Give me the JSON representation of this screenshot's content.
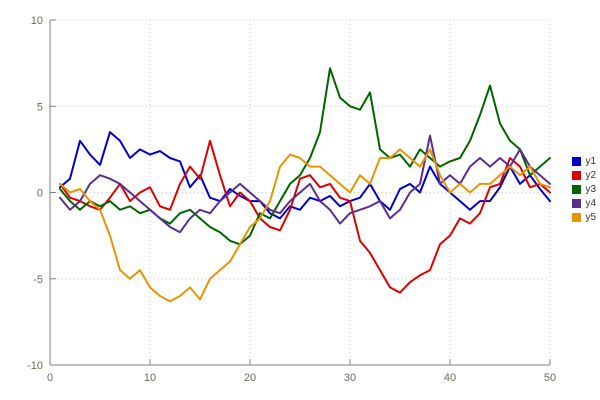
{
  "chart_data": {
    "type": "line",
    "title": "",
    "xlabel": "",
    "ylabel": "",
    "xlim": [
      0,
      50
    ],
    "ylim": [
      -10,
      10
    ],
    "x_ticks": [
      0,
      10,
      20,
      30,
      40,
      50
    ],
    "y_ticks": [
      -10,
      -5,
      0,
      5,
      10
    ],
    "grid": "dotted",
    "legend_position": "right-outside",
    "x": [
      1,
      2,
      3,
      4,
      5,
      6,
      7,
      8,
      9,
      10,
      11,
      12,
      13,
      14,
      15,
      16,
      17,
      18,
      19,
      20,
      21,
      22,
      23,
      24,
      25,
      26,
      27,
      28,
      29,
      30,
      31,
      32,
      33,
      34,
      35,
      36,
      37,
      38,
      39,
      40,
      41,
      42,
      43,
      44,
      45,
      46,
      47,
      48,
      49,
      50
    ],
    "series": [
      {
        "name": "y1",
        "color": "#0000cc",
        "values": [
          0.3,
          0.8,
          3.0,
          2.2,
          1.6,
          3.5,
          3.0,
          2.0,
          2.5,
          2.2,
          2.4,
          2.0,
          1.8,
          0.3,
          1.0,
          -0.3,
          -0.5,
          0.2,
          -0.2,
          -0.5,
          -0.5,
          -1.2,
          -1.5,
          -0.8,
          -1.0,
          -0.3,
          -0.5,
          -0.2,
          -0.8,
          -0.5,
          -0.3,
          0.5,
          -0.5,
          -1.0,
          0.2,
          0.5,
          0.0,
          1.5,
          0.5,
          0.0,
          -0.5,
          -1.0,
          -0.5,
          -0.5,
          0.3,
          1.5,
          0.5,
          1.0,
          0.2,
          -0.5
        ]
      },
      {
        "name": "y2",
        "color": "#dd0000",
        "values": [
          0.5,
          -0.3,
          -0.5,
          -0.8,
          -1.0,
          -0.3,
          0.5,
          -0.5,
          0.0,
          0.3,
          -0.8,
          -1.0,
          0.5,
          1.5,
          0.8,
          3.0,
          1.0,
          -0.8,
          0.0,
          -0.5,
          -1.5,
          -2.0,
          -2.2,
          -1.0,
          0.8,
          1.0,
          0.3,
          0.5,
          -0.3,
          -0.5,
          -2.8,
          -3.5,
          -4.5,
          -5.5,
          -5.8,
          -5.2,
          -4.8,
          -4.5,
          -3.0,
          -2.5,
          -1.5,
          -1.8,
          -1.2,
          0.3,
          0.5,
          2.0,
          1.5,
          0.3,
          0.5,
          0.0
        ]
      },
      {
        "name": "y3",
        "color": "#006400",
        "values": [
          0.2,
          -0.5,
          -1.0,
          -0.5,
          -0.8,
          -0.5,
          -1.0,
          -0.8,
          -1.2,
          -1.0,
          -1.5,
          -1.8,
          -1.2,
          -1.0,
          -1.5,
          -2.0,
          -2.3,
          -2.8,
          -3.0,
          -2.5,
          -1.2,
          -1.5,
          -0.5,
          0.5,
          1.0,
          2.0,
          3.5,
          7.2,
          5.5,
          5.0,
          4.8,
          5.8,
          2.5,
          2.0,
          2.2,
          1.5,
          2.5,
          2.0,
          1.5,
          1.8,
          2.0,
          3.0,
          4.5,
          6.2,
          4.0,
          3.0,
          2.5,
          1.0,
          1.5,
          2.0
        ]
      },
      {
        "name": "y4",
        "color": "#5c2d91",
        "values": [
          -0.3,
          -1.0,
          -0.5,
          0.5,
          1.0,
          0.8,
          0.5,
          0.0,
          -0.5,
          -1.0,
          -1.5,
          -2.0,
          -2.3,
          -1.5,
          -1.0,
          -1.2,
          -0.5,
          0.0,
          0.5,
          0.0,
          -0.5,
          -1.0,
          -1.2,
          -0.5,
          0.0,
          0.5,
          -0.5,
          -1.0,
          -1.8,
          -1.2,
          -1.0,
          -0.8,
          -0.5,
          -1.5,
          -1.0,
          0.0,
          0.5,
          3.3,
          0.5,
          1.0,
          0.5,
          1.5,
          2.0,
          1.5,
          2.0,
          1.5,
          2.5,
          1.5,
          1.0,
          0.5
        ]
      },
      {
        "name": "y5",
        "color": "#e69500",
        "values": [
          0.5,
          0.0,
          0.2,
          -0.5,
          -1.0,
          -2.5,
          -4.5,
          -5.0,
          -4.5,
          -5.5,
          -6.0,
          -6.3,
          -6.0,
          -5.5,
          -6.2,
          -5.0,
          -4.5,
          -4.0,
          -3.0,
          -2.0,
          -1.5,
          -0.5,
          1.5,
          2.2,
          2.0,
          1.5,
          1.5,
          1.0,
          0.5,
          0.0,
          1.0,
          0.5,
          2.0,
          2.0,
          2.5,
          2.0,
          1.5,
          2.5,
          1.0,
          0.0,
          0.5,
          0.0,
          0.5,
          0.5,
          1.0,
          1.5,
          1.0,
          1.5,
          0.5,
          0.3
        ]
      }
    ]
  },
  "style": {
    "grid_color": "#c8c8c8",
    "axis_color": "#808080",
    "background": "#ffffff"
  }
}
